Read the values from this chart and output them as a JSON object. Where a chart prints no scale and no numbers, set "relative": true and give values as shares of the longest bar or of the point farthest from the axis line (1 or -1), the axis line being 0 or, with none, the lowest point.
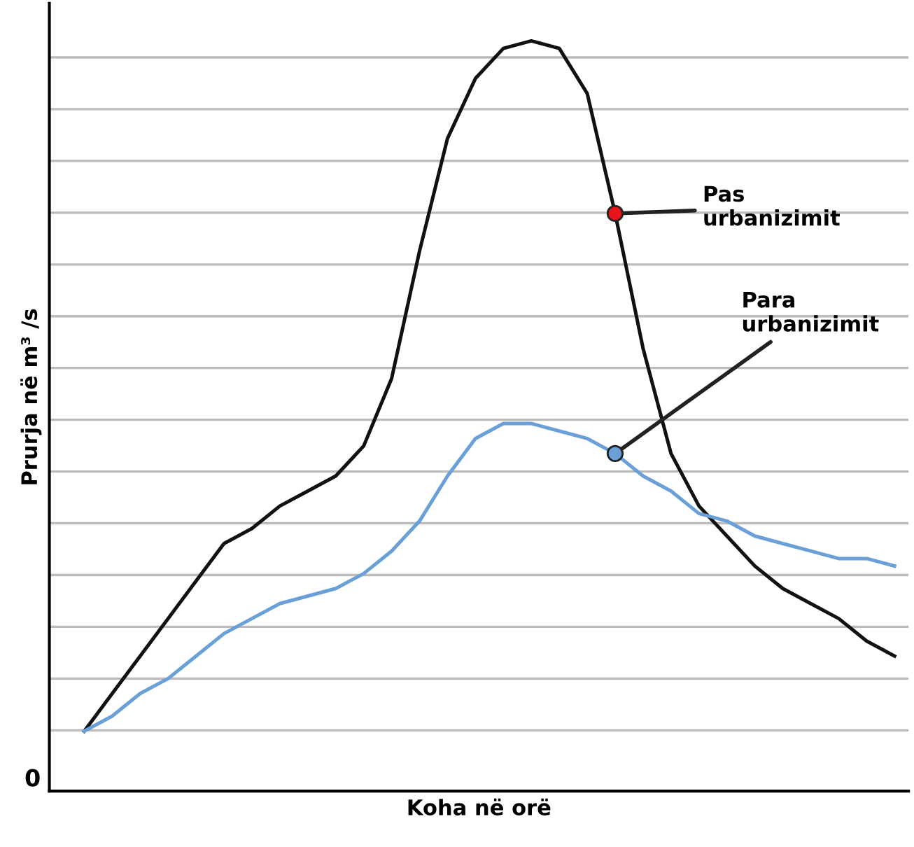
{
  "chart_data": {
    "type": "line",
    "xlabel": "Koha në orë",
    "ylabel": "Prurja në m³ /s",
    "relative": true,
    "grid": "y",
    "legend": "right",
    "marker": "none",
    "line_style": "solid",
    "annotations": [
      "0"
    ],
    "categories": [
      null,
      null,
      null,
      null,
      null,
      null,
      null,
      null,
      null,
      null,
      null,
      null,
      null,
      null,
      null,
      null,
      null,
      null,
      null,
      null,
      null,
      null,
      null,
      null,
      null,
      null,
      null,
      null,
      null,
      null
    ],
    "series": [
      {
        "name": "Pas urbanizimit",
        "color": "#111111",
        "values": [
          0.08,
          0.13,
          0.18,
          0.23,
          0.28,
          0.33,
          0.35,
          0.38,
          0.4,
          0.42,
          0.46,
          0.55,
          0.72,
          0.87,
          0.95,
          0.99,
          1.0,
          0.99,
          0.93,
          0.77,
          0.59,
          0.45,
          0.38,
          0.34,
          0.3,
          0.27,
          0.25,
          0.23,
          0.2,
          0.18
        ]
      },
      {
        "name": "Para urbanizimit",
        "color": "#6a9fd8",
        "values": [
          0.08,
          0.1,
          0.13,
          0.15,
          0.18,
          0.21,
          0.23,
          0.25,
          0.26,
          0.27,
          0.29,
          0.32,
          0.36,
          0.42,
          0.47,
          0.49,
          0.49,
          0.48,
          0.47,
          0.45,
          0.42,
          0.4,
          0.37,
          0.36,
          0.34,
          0.33,
          0.32,
          0.31,
          0.31,
          0.3
        ]
      }
    ]
  }
}
